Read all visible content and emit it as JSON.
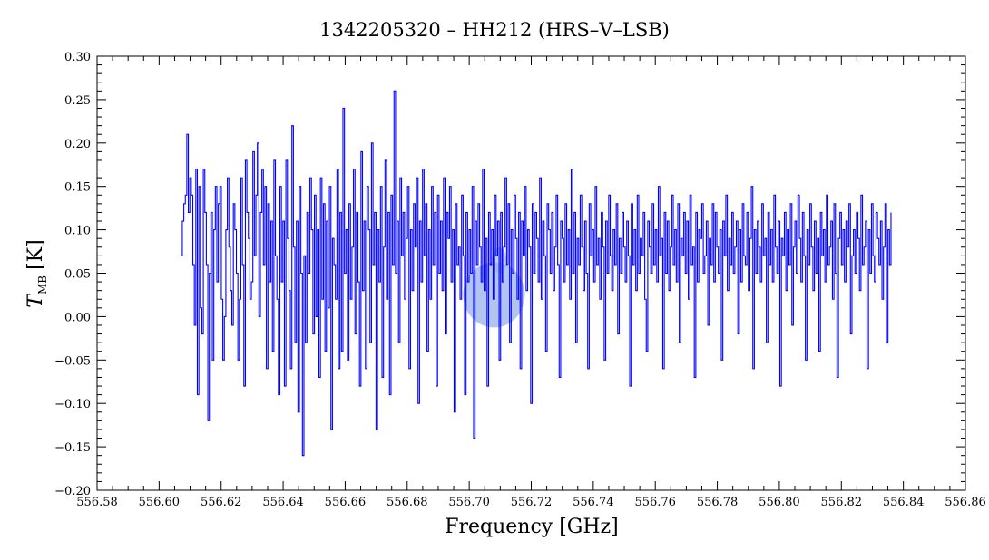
{
  "chart_data": {
    "type": "line",
    "title": "1342205320 – HH212 (HRS–V–LSB)",
    "xlabel": "Frequency [GHz]",
    "ylabel_main": "T",
    "ylabel_sub": "MB",
    "ylabel_unit": "[K]",
    "xlim": [
      556.58,
      556.86
    ],
    "ylim": [
      -0.2,
      0.3
    ],
    "x_ticks": [
      556.58,
      556.6,
      556.62,
      556.64,
      556.66,
      556.68,
      556.7,
      556.72,
      556.74,
      556.76,
      556.78,
      556.8,
      556.82,
      556.84,
      556.86
    ],
    "x_tick_labels": [
      "556.58",
      "556.60",
      "556.62",
      "556.64",
      "556.66",
      "556.68",
      "556.70",
      "556.72",
      "556.74",
      "556.76",
      "556.78",
      "556.80",
      "556.82",
      "556.84",
      "556.86"
    ],
    "y_ticks": [
      -0.2,
      -0.15,
      -0.1,
      -0.05,
      0.0,
      0.05,
      0.1,
      0.15,
      0.2,
      0.25,
      0.3
    ],
    "y_tick_labels": [
      "−0.20",
      "−0.15",
      "−0.10",
      "−0.05",
      "0.00",
      "0.05",
      "0.10",
      "0.15",
      "0.20",
      "0.25",
      "0.30"
    ],
    "series": [
      {
        "color": "#0000ff",
        "x_start": 556.607,
        "x_end": 556.836,
        "values": [
          0.07,
          0.11,
          0.13,
          0.14,
          0.21,
          0.12,
          0.16,
          0.14,
          0.06,
          -0.01,
          0.17,
          -0.09,
          0.15,
          0.01,
          -0.02,
          0.17,
          0.12,
          0.06,
          -0.12,
          0.05,
          0.12,
          -0.05,
          0.1,
          0.15,
          0.04,
          0.13,
          0.15,
          0.02,
          -0.05,
          0.0,
          0.1,
          0.16,
          0.08,
          0.03,
          -0.01,
          0.13,
          0.1,
          0.05,
          -0.05,
          0.02,
          0.16,
          0.06,
          -0.08,
          0.18,
          0.12,
          0.09,
          0.02,
          0.04,
          0.19,
          0.07,
          0.14,
          0.2,
          0.0,
          0.12,
          0.17,
          0.06,
          0.15,
          -0.06,
          0.13,
          0.04,
          0.11,
          -0.04,
          0.18,
          0.07,
          0.02,
          -0.09,
          0.15,
          0.04,
          0.11,
          -0.08,
          0.18,
          0.09,
          0.03,
          -0.06,
          0.22,
          0.08,
          -0.03,
          0.11,
          -0.11,
          0.15,
          0.05,
          -0.16,
          0.07,
          -0.03,
          0.12,
          0.05,
          0.16,
          0.1,
          -0.02,
          0.14,
          0.0,
          0.1,
          -0.07,
          0.16,
          0.02,
          0.13,
          -0.04,
          0.11,
          0.01,
          0.15,
          -0.13,
          0.09,
          0.06,
          0.02,
          0.17,
          -0.06,
          0.12,
          -0.04,
          0.24,
          0.05,
          0.1,
          -0.05,
          0.13,
          0.02,
          0.08,
          0.17,
          -0.02,
          0.12,
          0.04,
          -0.08,
          0.19,
          0.03,
          0.11,
          -0.06,
          0.15,
          0.1,
          -0.03,
          0.2,
          0.06,
          0.12,
          -0.13,
          0.1,
          0.04,
          0.15,
          -0.07,
          0.08,
          0.18,
          0.02,
          0.12,
          -0.09,
          0.14,
          0.06,
          0.26,
          0.05,
          0.11,
          -0.03,
          0.16,
          0.07,
          0.12,
          0.02,
          0.09,
          0.15,
          -0.06,
          0.1,
          0.03,
          0.13,
          0.08,
          0.16,
          -0.1,
          0.11,
          0.04,
          0.17,
          0.07,
          0.13,
          -0.04,
          0.1,
          0.02,
          0.15,
          0.06,
          0.12,
          -0.08,
          0.14,
          0.05,
          0.11,
          0.03,
          0.16,
          -0.02,
          0.12,
          0.09,
          0.15,
          0.04,
          0.1,
          -0.11,
          0.13,
          0.06,
          0.08,
          0.02,
          0.14,
          0.07,
          -0.09,
          0.12,
          0.04,
          0.1,
          0.05,
          0.15,
          -0.14,
          0.11,
          0.06,
          0.13,
          0.08,
          0.04,
          0.17,
          0.03,
          0.09,
          -0.08,
          0.12,
          0.06,
          0.1,
          0.02,
          0.14,
          0.07,
          0.11,
          -0.05,
          0.12,
          0.04,
          0.08,
          0.16,
          0.06,
          0.13,
          -0.03,
          0.1,
          0.05,
          0.14,
          0.09,
          0.02,
          0.12,
          -0.06,
          0.11,
          0.07,
          0.15,
          0.03,
          0.1,
          0.08,
          -0.1,
          0.13,
          0.05,
          0.12,
          0.09,
          0.04,
          0.16,
          0.02,
          0.11,
          0.07,
          -0.04,
          0.13,
          0.1,
          0.05,
          0.12,
          0.03,
          0.08,
          0.14,
          0.06,
          -0.07,
          0.11,
          0.09,
          0.04,
          0.13,
          0.06,
          0.1,
          0.02,
          0.17,
          0.05,
          0.12,
          -0.03,
          0.09,
          0.06,
          0.14,
          0.08,
          0.03,
          0.11,
          0.05,
          -0.06,
          0.13,
          0.07,
          0.1,
          0.04,
          0.15,
          0.06,
          0.09,
          0.02,
          0.12,
          0.08,
          -0.05,
          0.11,
          0.05,
          0.14,
          0.07,
          0.03,
          0.1,
          0.06,
          0.13,
          -0.02,
          0.09,
          0.05,
          0.12,
          0.08,
          0.04,
          0.11,
          0.07,
          -0.08,
          0.13,
          0.06,
          0.1,
          0.03,
          0.14,
          0.05,
          0.09,
          0.07,
          0.12,
          0.02,
          -0.04,
          0.11,
          0.08,
          0.05,
          0.13,
          0.06,
          0.1,
          0.04,
          0.15,
          0.07,
          0.09,
          -0.06,
          0.12,
          0.05,
          0.11,
          0.03,
          0.08,
          0.14,
          0.06,
          0.1,
          0.04,
          0.13,
          -0.03,
          0.09,
          0.07,
          0.12,
          0.05,
          0.11,
          0.02,
          0.14,
          0.06,
          0.08,
          -0.07,
          0.12,
          0.04,
          0.1,
          0.09,
          0.13,
          0.05,
          0.07,
          0.11,
          -0.01,
          0.09,
          0.06,
          0.13,
          0.04,
          0.12,
          0.08,
          0.05,
          0.1,
          -0.05,
          0.11,
          0.07,
          0.14,
          0.03,
          0.09,
          0.06,
          0.12,
          0.05,
          0.08,
          0.11,
          -0.02,
          0.1,
          0.04,
          0.13,
          0.07,
          0.06,
          0.12,
          0.03,
          0.09,
          0.15,
          -0.06,
          0.1,
          0.05,
          0.11,
          0.08,
          0.04,
          0.13,
          0.07,
          0.09,
          -0.03,
          0.12,
          0.06,
          0.1,
          0.04,
          0.14,
          0.08,
          0.05,
          0.11,
          -0.08,
          0.09,
          0.07,
          0.12,
          0.03,
          0.1,
          0.06,
          0.13,
          -0.01,
          0.08,
          0.11,
          0.05,
          0.14,
          0.09,
          0.04,
          0.12,
          0.07,
          -0.05,
          0.1,
          0.06,
          0.13,
          0.08,
          0.03,
          0.11,
          0.05,
          0.09,
          -0.04,
          0.12,
          0.07,
          0.1,
          0.04,
          0.14,
          0.06,
          0.08,
          0.11,
          0.02,
          0.13,
          0.05,
          -0.07,
          0.09,
          0.12,
          0.06,
          0.1,
          0.04,
          0.11,
          0.08,
          0.13,
          -0.02,
          0.07,
          0.1,
          0.05,
          0.12,
          0.09,
          0.03,
          0.14,
          0.06,
          0.08,
          0.11,
          -0.06,
          0.1,
          0.05,
          0.13,
          0.07,
          0.04,
          0.12,
          0.09,
          0.06,
          0.11,
          0.02,
          0.08,
          0.13,
          -0.03,
          0.1,
          0.06,
          0.12
        ],
        "note_values_count": 0
      }
    ],
    "grid": false,
    "legend": "none",
    "highlight_color": "#9ab0e8"
  }
}
